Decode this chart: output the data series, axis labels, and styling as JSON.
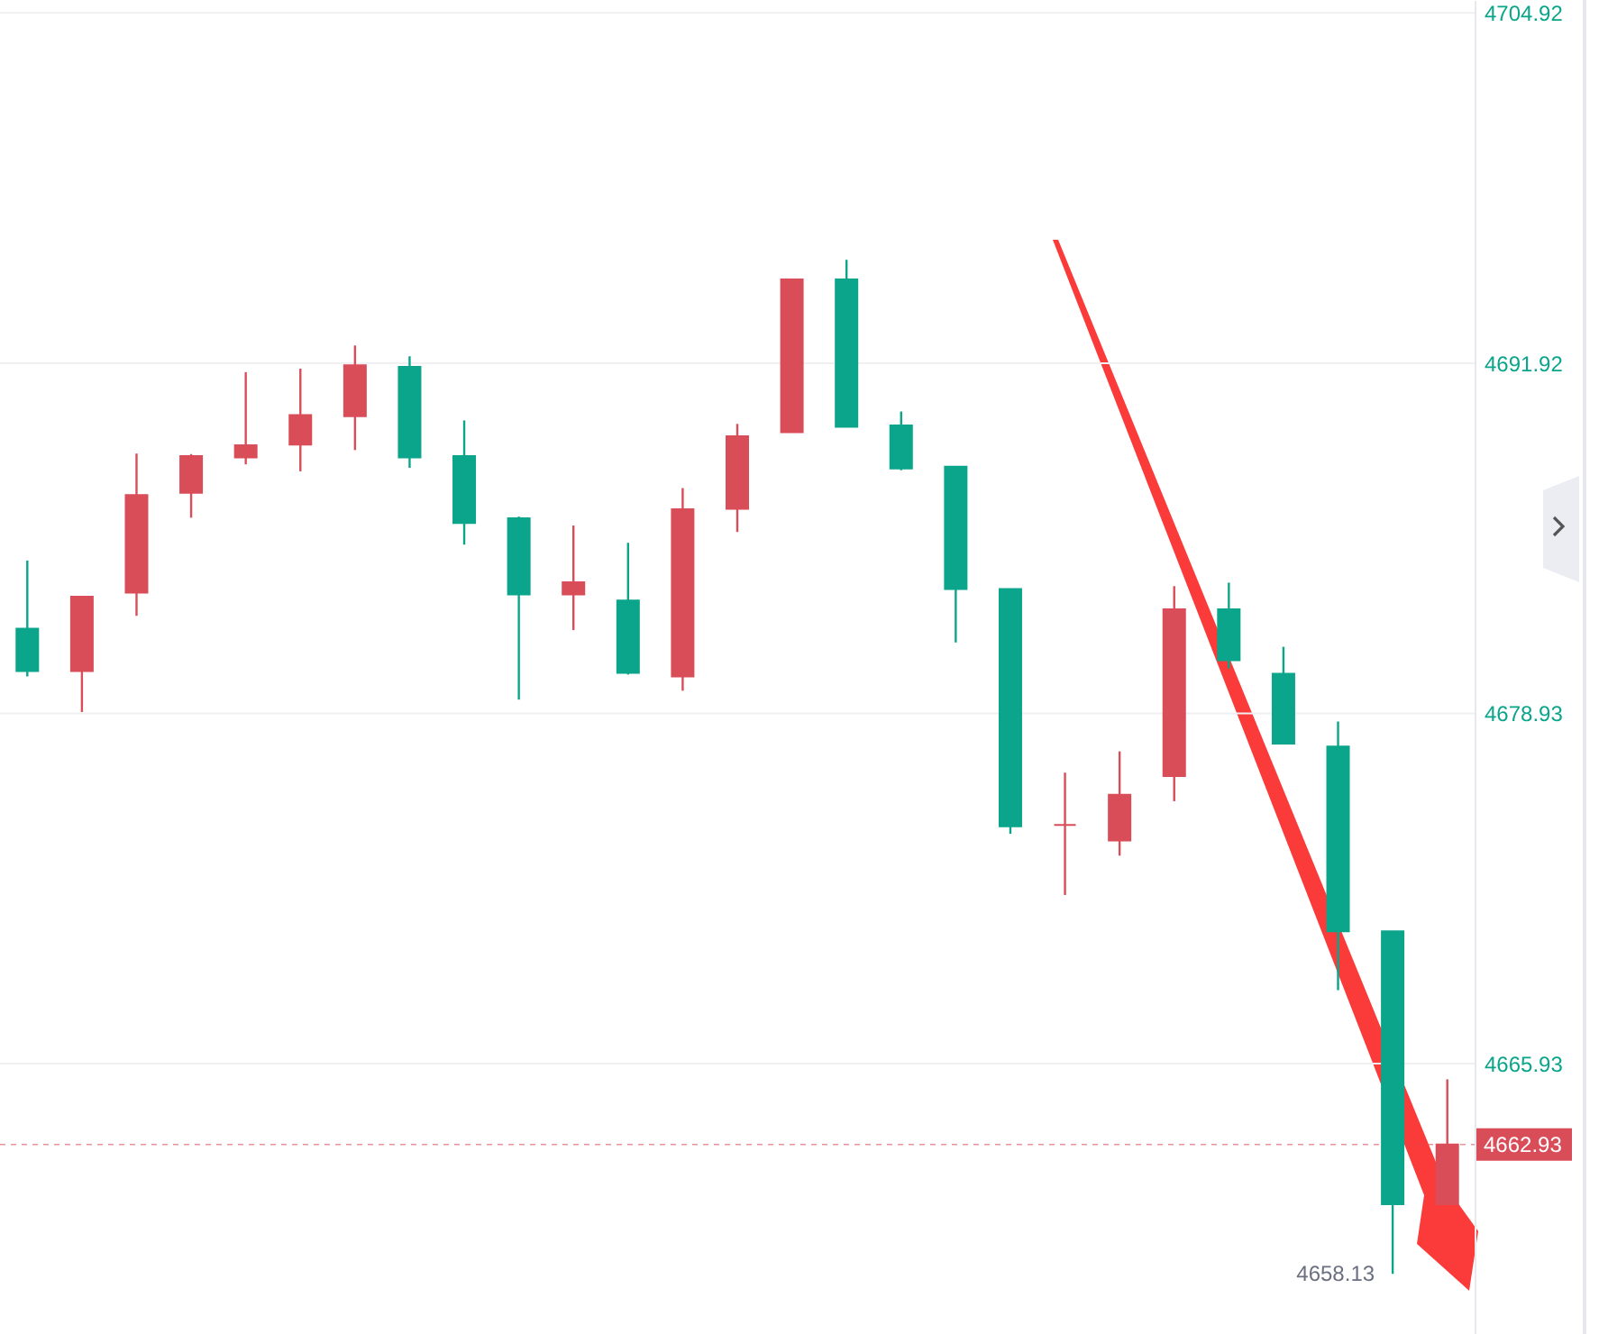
{
  "chart_data": {
    "type": "candlestick",
    "categories": [
      null,
      null,
      null,
      null,
      null,
      null,
      null,
      null,
      null,
      null,
      null,
      null,
      null,
      null,
      null,
      null,
      null,
      null,
      null,
      null,
      null,
      null,
      null,
      null,
      null,
      null,
      null
    ],
    "ohlc": [
      [
        4682.07,
        4684.6,
        4680.3,
        4680.5
      ],
      [
        4680.5,
        4683.26,
        4678.98,
        4683.26
      ],
      [
        4683.41,
        4688.57,
        4682.55,
        4687.03
      ],
      [
        4687.11,
        4688.55,
        4686.19,
        4688.48
      ],
      [
        4688.43,
        4691.59,
        4688.17,
        4688.88
      ],
      [
        4688.9,
        4691.72,
        4687.91,
        4690.0
      ],
      [
        4689.96,
        4692.58,
        4688.7,
        4691.85
      ],
      [
        4691.79,
        4692.18,
        4688.04,
        4688.43
      ],
      [
        4688.48,
        4689.8,
        4685.19,
        4685.99
      ],
      [
        4686.17,
        4686.23,
        4679.44,
        4683.34
      ],
      [
        4683.34,
        4685.9,
        4682.02,
        4683.79
      ],
      [
        4683.12,
        4685.26,
        4680.37,
        4680.43
      ],
      [
        4680.3,
        4687.29,
        4679.77,
        4686.5
      ],
      [
        4686.52,
        4689.67,
        4685.66,
        4689.21
      ],
      [
        4689.36,
        4695.03,
        4689.36,
        4695.03
      ],
      [
        4695.03,
        4695.76,
        4689.56,
        4689.56
      ],
      [
        4689.61,
        4690.13,
        4687.95,
        4688.02
      ],
      [
        4688.08,
        4688.08,
        4681.56,
        4683.54
      ],
      [
        4683.54,
        4683.54,
        4674.46,
        4674.74
      ],
      [
        4674.79,
        4676.73,
        4672.19,
        4674.79
      ],
      [
        4674.21,
        4677.52,
        4673.65,
        4675.91
      ],
      [
        4676.6,
        4683.65,
        4675.67,
        4682.79
      ],
      [
        4682.79,
        4683.78,
        4680.6,
        4680.9
      ],
      [
        4680.4,
        4681.4,
        4677.81,
        4677.81
      ],
      [
        4677.7,
        4678.63,
        4668.66,
        4670.84
      ],
      [
        4670.84,
        4670.84,
        4658.13,
        4660.72
      ],
      [
        4660.72,
        4665.35,
        4660.72,
        4662.93
      ]
    ],
    "colors": [
      "#0aa58a",
      "#d94d59",
      "#d94d59",
      "#d94d59",
      "#d94d59",
      "#d94d59",
      "#d94d59",
      "#0aa58a",
      "#0aa58a",
      "#0aa58a",
      "#d94d59",
      "#0aa58a",
      "#d94d59",
      "#d94d59",
      "#d94d59",
      "#0aa58a",
      "#0aa58a",
      "#0aa58a",
      "#0aa58a",
      "#d94d59",
      "#d94d59",
      "#d94d59",
      "#0aa58a",
      "#0aa58a",
      "#0aa58a",
      "#0aa58a",
      "#d94d59"
    ],
    "ylim": [
      4655.9,
      4705.4
    ],
    "yticks": [
      4665.93,
      4678.93,
      4691.92,
      4704.92
    ],
    "grid": "y",
    "ref_lines": [
      {
        "axis": "y",
        "value": 4662.93,
        "label": "4662.93",
        "color": "#d94d59",
        "line_style": "dashed"
      }
    ],
    "annotations": [
      "4658.13"
    ]
  }
}
